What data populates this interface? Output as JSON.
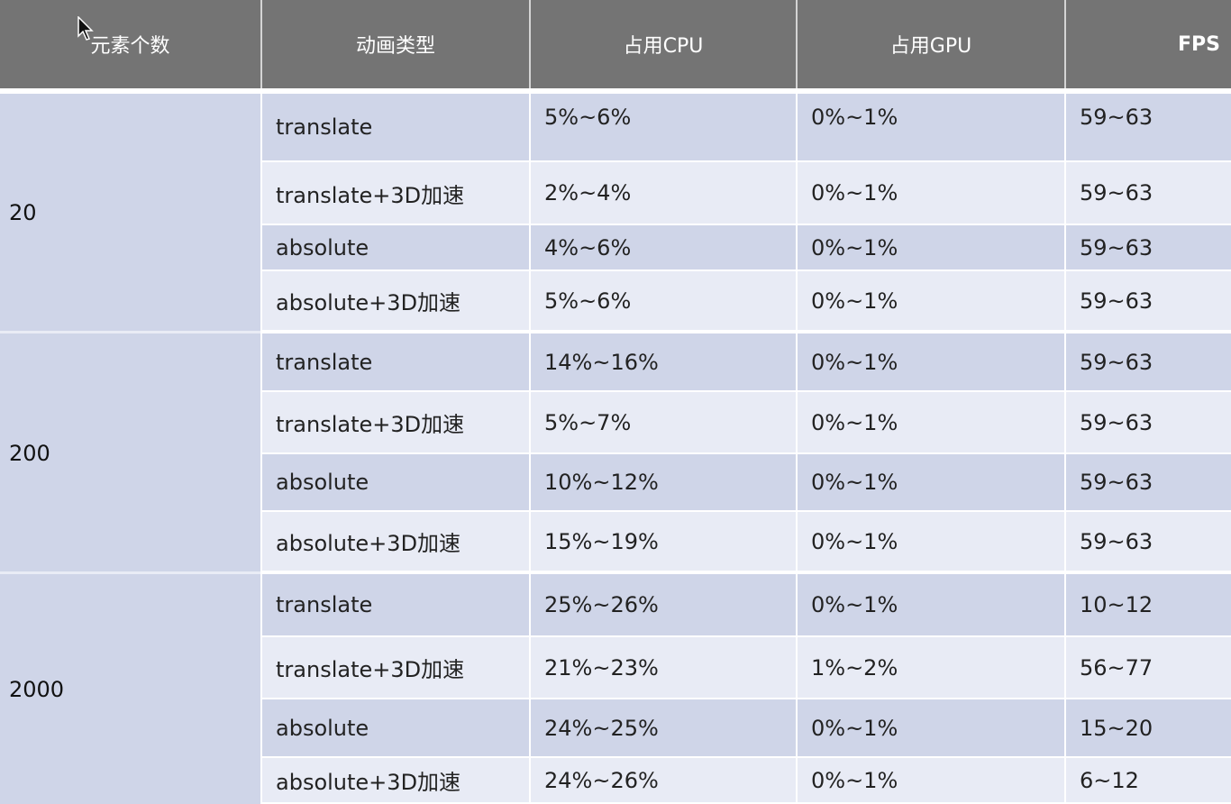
{
  "table": {
    "headers": [
      "元素个数",
      "动画类型",
      "占用CPU",
      "占用GPU",
      "FPS"
    ],
    "groups": [
      {
        "count": "20",
        "rows": [
          {
            "type": "translate",
            "cpu": "5%~6%",
            "gpu": "0%~1%",
            "fps": "59~63"
          },
          {
            "type": "translate+3D加速",
            "cpu": "2%~4%",
            "gpu": "0%~1%",
            "fps": "59~63"
          },
          {
            "type": "absolute",
            "cpu": "4%~6%",
            "gpu": "0%~1%",
            "fps": "59~63"
          },
          {
            "type": "absolute+3D加速",
            "cpu": "5%~6%",
            "gpu": "0%~1%",
            "fps": "59~63"
          }
        ]
      },
      {
        "count": "200",
        "rows": [
          {
            "type": "translate",
            "cpu": "14%~16%",
            "gpu": "0%~1%",
            "fps": "59~63"
          },
          {
            "type": "translate+3D加速",
            "cpu": "5%~7%",
            "gpu": "0%~1%",
            "fps": "59~63"
          },
          {
            "type": "absolute",
            "cpu": "10%~12%",
            "gpu": "0%~1%",
            "fps": "59~63"
          },
          {
            "type": "absolute+3D加速",
            "cpu": "15%~19%",
            "gpu": "0%~1%",
            "fps": "59~63"
          }
        ]
      },
      {
        "count": "2000",
        "rows": [
          {
            "type": "translate",
            "cpu": "25%~26%",
            "gpu": "0%~1%",
            "fps": "10~12"
          },
          {
            "type": "translate+3D加速",
            "cpu": "21%~23%",
            "gpu": "1%~2%",
            "fps": "56~77"
          },
          {
            "type": "absolute",
            "cpu": "24%~25%",
            "gpu": "0%~1%",
            "fps": "15~20"
          },
          {
            "type": "absolute+3D加速",
            "cpu": "24%~26%",
            "gpu": "0%~1%",
            "fps": "6~12"
          }
        ]
      }
    ]
  },
  "colors": {
    "header_bg": "#747474",
    "row_dark": "#cfd5e8",
    "row_light": "#e8ebf5"
  },
  "icons": {
    "cursor": "mouse-pointer-icon"
  }
}
